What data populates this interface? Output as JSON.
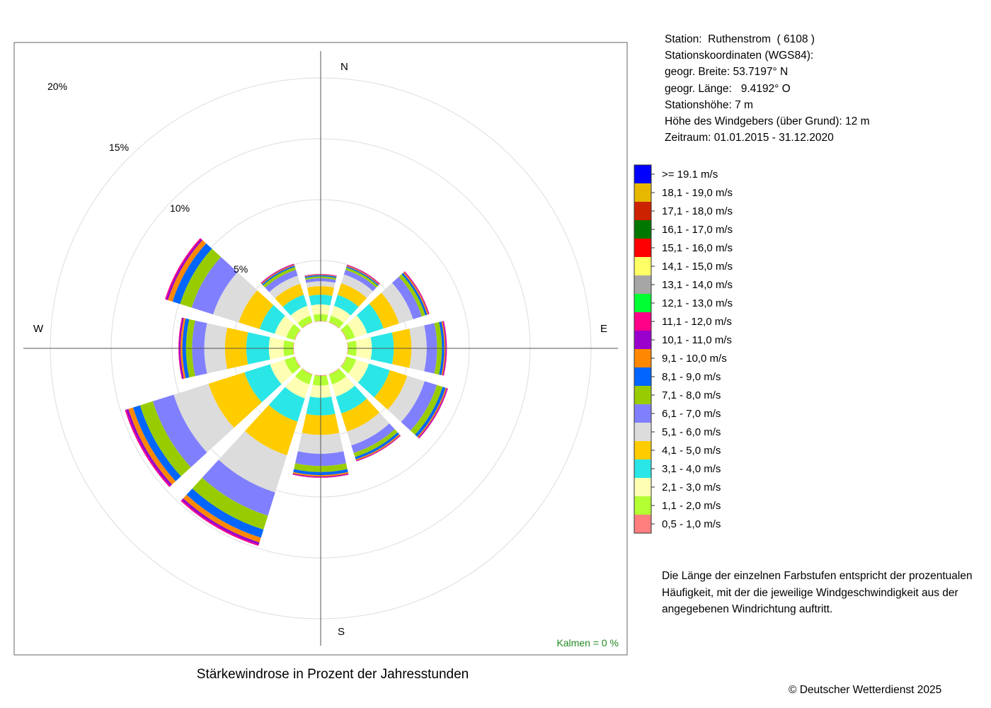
{
  "station_info": {
    "station_line": "Station:  Ruthenstrom  ( 6108 )",
    "coords_heading": "Stationskoordinaten (WGS84):",
    "latitude_line": "geogr. Breite: 53.7197° N",
    "longitude_line": "geogr. Länge:   9.4192° O",
    "elevation_line": "Stationshöhe: 7 m",
    "sensor_height_line": "Höhe des Windgebers (über Grund): 12 m",
    "period_line": "Zeitraum: 01.01.2015 - 31.12.2020"
  },
  "note": {
    "line1": "Die Länge der einzelnen Farbstufen entspricht der prozentualen",
    "line2": "Häufigkeit, mit der die jeweilige Windgeschwindigkeit aus der",
    "line3": "angegebenen Windrichtung auftritt."
  },
  "footer": {
    "title": "Stärkewindrose in Prozent der Jahresstunden",
    "copyright": "© Deutscher Wetterdienst  2025"
  },
  "chart_data": {
    "type": "wind-rose",
    "title": "Stärkewindrose in Prozent der Jahresstunden",
    "calm_label": "Kalmen  =  0 %",
    "directions": [
      "N",
      "E",
      "S",
      "W"
    ],
    "ring_labels": [
      "5%",
      "10%",
      "15%",
      "20%"
    ],
    "ring_values": [
      5,
      10,
      15,
      20
    ],
    "sector_centers_deg": [
      0,
      30,
      60,
      90,
      120,
      150,
      180,
      210,
      240,
      270,
      300,
      330
    ],
    "speed_classes": [
      {
        "label": "0,5 - 1,0 m/s",
        "color": "#ff7f7f"
      },
      {
        "label": "1,1 - 2,0 m/s",
        "color": "#b3ff33"
      },
      {
        "label": "2,1 - 3,0 m/s",
        "color": "#ffffb3"
      },
      {
        "label": "3,1 - 4,0 m/s",
        "color": "#2ae6e6"
      },
      {
        "label": "4,1 - 5,0 m/s",
        "color": "#ffcc00"
      },
      {
        "label": "5,1 - 6,0 m/s",
        "color": "#dcdcdc"
      },
      {
        "label": "6,1 - 7,0 m/s",
        "color": "#8080ff"
      },
      {
        "label": "7,1 - 8,0 m/s",
        "color": "#99cc00"
      },
      {
        "label": "8,1 - 9,0 m/s",
        "color": "#0066ff"
      },
      {
        "label": "9,1 - 10,0 m/s",
        "color": "#ff8800"
      },
      {
        "label": "10,1 - 11,0 m/s",
        "color": "#9900cc"
      },
      {
        "label": "11,1 - 12,0 m/s",
        "color": "#ff0088"
      },
      {
        "label": "12,1 - 13,0 m/s",
        "color": "#00ff33"
      },
      {
        "label": "13,1 - 14,0 m/s",
        "color": "#a6a6a6"
      },
      {
        "label": "14,1 - 15,0 m/s",
        "color": "#ffff66"
      },
      {
        "label": "15,1 - 16,0 m/s",
        "color": "#ff0000"
      },
      {
        "label": "16,1 - 17,0 m/s",
        "color": "#007700"
      },
      {
        "label": "17,1 - 18,0 m/s",
        "color": "#cc2200"
      },
      {
        "label": "18,1 - 19,0 m/s",
        "color": "#e6b800"
      },
      {
        "label": ">= 19.1 m/s",
        "color": "#0000ff"
      }
    ],
    "cumulative_percent_by_sector": [
      [
        0.05,
        0.6,
        1.4,
        2.2,
        2.9,
        3.3,
        3.55,
        3.7,
        3.8,
        3.85,
        3.88,
        3.9
      ],
      [
        0.05,
        0.6,
        1.45,
        2.4,
        3.4,
        4.15,
        4.55,
        4.75,
        4.85,
        4.92,
        4.96,
        5.0
      ],
      [
        0.05,
        0.75,
        1.8,
        3.2,
        4.55,
        5.75,
        6.5,
        6.8,
        6.97,
        7.07,
        7.12,
        7.16
      ],
      [
        0.05,
        0.75,
        2.0,
        3.8,
        5.25,
        6.5,
        7.35,
        7.75,
        7.95,
        8.05,
        8.12,
        8.16
      ],
      [
        0.05,
        0.85,
        1.95,
        3.75,
        5.25,
        6.75,
        7.8,
        8.3,
        8.55,
        8.65,
        8.72,
        8.76
      ],
      [
        0.05,
        0.9,
        1.95,
        3.4,
        4.95,
        6.15,
        6.8,
        7.15,
        7.35,
        7.45,
        7.5,
        7.53
      ],
      [
        0.05,
        0.85,
        1.85,
        3.3,
        4.9,
        6.45,
        7.45,
        7.95,
        8.2,
        8.32,
        8.38,
        8.42
      ],
      [
        0.05,
        0.9,
        2.1,
        4.1,
        7.0,
        10.2,
        12.2,
        13.4,
        14.1,
        14.5,
        14.7,
        14.8
      ],
      [
        0.05,
        0.9,
        2.15,
        4.35,
        7.45,
        10.45,
        12.25,
        13.35,
        13.95,
        14.35,
        14.55,
        14.65
      ],
      [
        0.05,
        0.85,
        2.05,
        3.9,
        5.65,
        7.35,
        8.35,
        8.85,
        9.15,
        9.3,
        9.42,
        9.47
      ],
      [
        0.05,
        0.75,
        1.75,
        3.05,
        4.85,
        7.05,
        8.9,
        9.9,
        10.55,
        10.95,
        11.1,
        11.2
      ],
      [
        0.05,
        0.6,
        1.45,
        2.4,
        3.35,
        4.05,
        4.55,
        4.8,
        4.92,
        5.0,
        5.05,
        5.08
      ]
    ],
    "legend_order": "top-to-bottom: >= 19.1 m/s ... 0,5 - 1,0 m/s",
    "legend_position": "right",
    "grid": true
  }
}
